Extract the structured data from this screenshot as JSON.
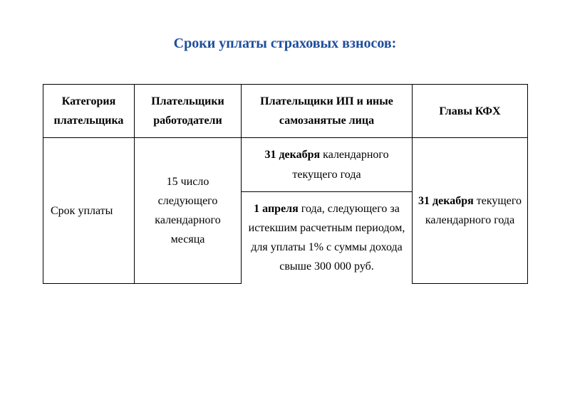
{
  "title": "Сроки уплаты страховых взносов:",
  "table": {
    "headers": {
      "col1": "Категория плательщика",
      "col2": "Плательщики работодатели",
      "col3": "Плательщики ИП и иные самозанятые лица",
      "col4": "Главы КФХ"
    },
    "row_label": "Срок уплаты",
    "cell_employers": "15 число следующего календарного месяца",
    "cell_ip_1_bold": "31 декабря",
    "cell_ip_1_rest": " календарного текущего года",
    "cell_ip_2_bold": "1 апреля",
    "cell_ip_2_rest": " года, следующего за истекшим расчетным периодом, для уплаты 1% с суммы дохода свыше 300 000 руб.",
    "cell_kfh_bold": "31 декабря",
    "cell_kfh_rest": " текущего календарного года"
  },
  "colors": {
    "title": "#1f4e9c",
    "border": "#000000",
    "background": "#ffffff",
    "text": "#000000"
  }
}
